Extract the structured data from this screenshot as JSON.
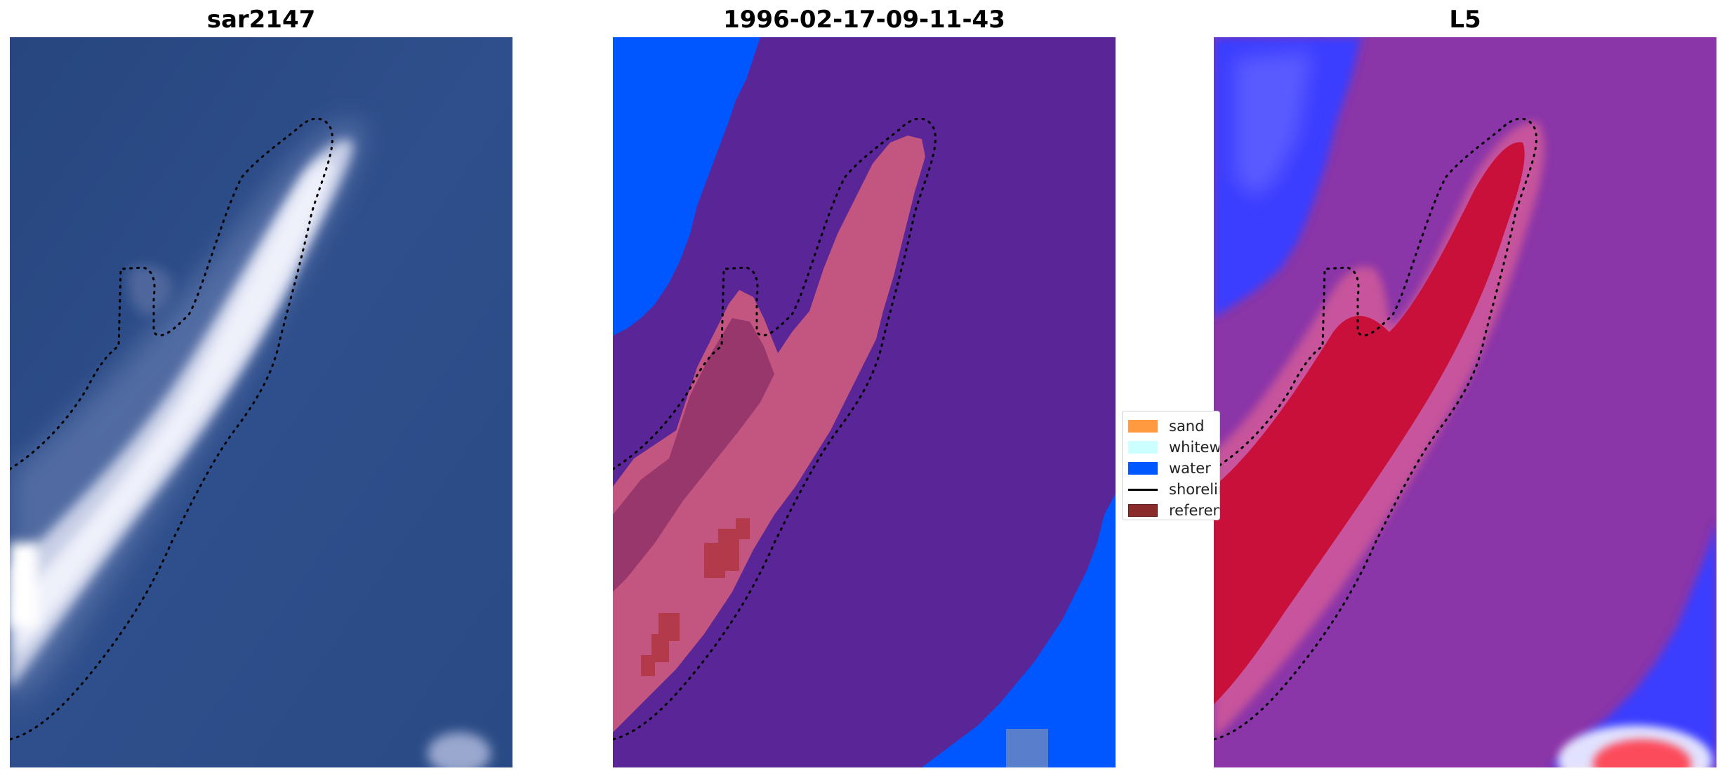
{
  "panels": [
    {
      "title": "sar2147"
    },
    {
      "title": "1996-02-17-09-11-43"
    },
    {
      "title": "L5"
    }
  ],
  "legend": {
    "items": [
      {
        "label": "sand",
        "color": "#ff9a40"
      },
      {
        "label": "whitewater",
        "color": "#ccffff"
      },
      {
        "label": "water",
        "color": "#0057ff"
      },
      {
        "label": "shoreline",
        "color": "#000000"
      },
      {
        "label": "reference",
        "color": "#8b2a2a"
      }
    ]
  },
  "colors": {
    "sea_dark": "#2c4a86",
    "classified_land": "#5a2596",
    "water_class": "#0057ff",
    "sand_overlay": "#c8587e",
    "reference_patch": "#b33a4a",
    "index_purple": "#8a35a8",
    "index_blue": "#3b3cff",
    "index_red": "#c8103a"
  }
}
